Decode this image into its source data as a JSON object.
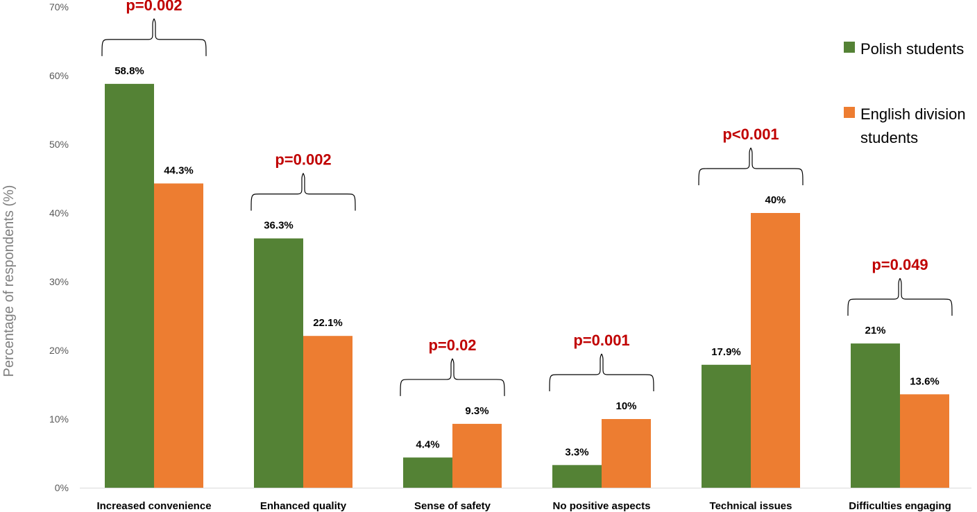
{
  "chart_data": {
    "type": "bar",
    "title": "",
    "xlabel": "",
    "ylabel": "Percentage of respondents (%)",
    "ylim": [
      0,
      70
    ],
    "yticks": [
      0,
      10,
      20,
      30,
      40,
      50,
      60,
      70
    ],
    "ytick_labels": [
      "0%",
      "10%",
      "20%",
      "30%",
      "40%",
      "50%",
      "60%",
      "70%"
    ],
    "grid": false,
    "legend_position": "top-right",
    "categories": [
      "Increased convenience",
      "Enhanced quality",
      "Sense of safety",
      "No positive aspects",
      "Technical issues",
      "Difficulties engaging"
    ],
    "series": [
      {
        "name": "Polish students",
        "color": "#548235",
        "values": [
          58.8,
          36.3,
          4.4,
          3.3,
          17.9,
          21
        ],
        "labels": [
          "58.8%",
          "36.3%",
          "4.4%",
          "3.3%",
          "17.9%",
          "21%"
        ]
      },
      {
        "name": "English division students",
        "color": "#ed7d31",
        "values": [
          44.3,
          22.1,
          9.3,
          10,
          40,
          13.6
        ],
        "labels": [
          "44.3%",
          "22.1%",
          "9.3%",
          "10%",
          "40%",
          "13.6%"
        ]
      }
    ],
    "annotations": [
      "p=0.002",
      "p=0.002",
      "p=0.02",
      "p=0.001",
      "p<0.001",
      "p=0.049"
    ],
    "annotation_color": "#c00000"
  }
}
